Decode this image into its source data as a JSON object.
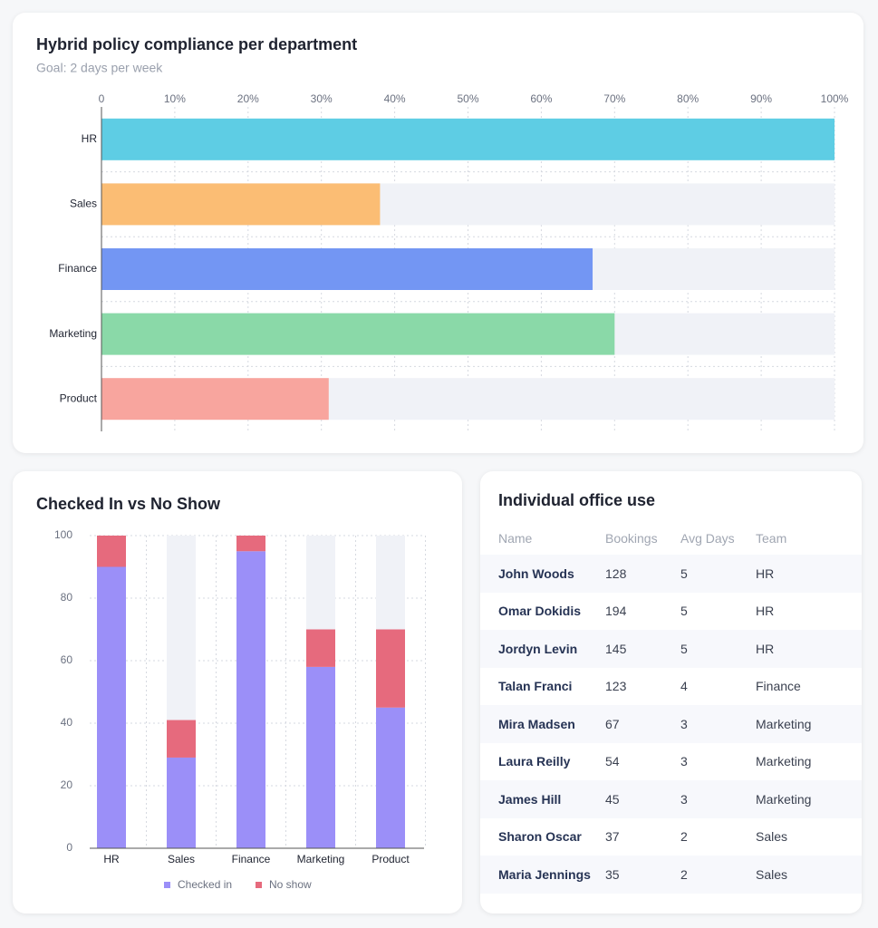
{
  "chart_data": [
    {
      "type": "hbar",
      "title": "Hybrid policy compliance per department",
      "subtitle": "Goal: 2 days per week",
      "categories": [
        "HR",
        "Sales",
        "Finance",
        "Marketing",
        "Product"
      ],
      "values": [
        100,
        38,
        67,
        70,
        31
      ],
      "colors": [
        "#5ecde4",
        "#fbbd74",
        "#7396f3",
        "#8ad9a8",
        "#f8a59e"
      ],
      "xlim": [
        0,
        100
      ],
      "xticks": [
        0,
        {
          "value": 10,
          "label": "10%"
        },
        {
          "value": 20,
          "label": "20%"
        },
        {
          "value": 30,
          "label": "30%"
        },
        {
          "value": 40,
          "label": "40%"
        },
        {
          "value": 50,
          "label": "50%"
        },
        {
          "value": 60,
          "label": "60%"
        },
        {
          "value": 70,
          "label": "70%"
        },
        {
          "value": 80,
          "label": "80%"
        },
        {
          "value": 90,
          "label": "90%"
        },
        {
          "value": 100,
          "label": "100%"
        }
      ],
      "grid": true
    },
    {
      "type": "stacked_bar",
      "title": "Checked In vs No Show",
      "categories": [
        "HR",
        "Sales",
        "Finance",
        "Marketing",
        "Product"
      ],
      "series": [
        {
          "name": "Checked in",
          "color": "#9b8ff8",
          "values": [
            90,
            29,
            95,
            58,
            45
          ]
        },
        {
          "name": "No show",
          "color": "#e66a7d",
          "values": [
            10,
            12,
            5,
            12,
            25
          ]
        }
      ],
      "ylim": [
        0,
        100
      ],
      "yticks": [
        0,
        20,
        40,
        60,
        80,
        100
      ],
      "grid": true,
      "legend": "bottom"
    }
  ],
  "table": {
    "title": "Individual office use",
    "columns": [
      "Name",
      "Bookings",
      "Avg Days",
      "Team"
    ],
    "rows": [
      [
        "John Woods",
        "128",
        "5",
        "HR"
      ],
      [
        "Omar Dokidis",
        "194",
        "5",
        "HR"
      ],
      [
        "Jordyn Levin",
        "145",
        "5",
        "HR"
      ],
      [
        "Talan Franci",
        "123",
        "4",
        "Finance"
      ],
      [
        "Mira Madsen",
        "67",
        "3",
        "Marketing"
      ],
      [
        "Laura Reilly",
        "54",
        "3",
        "Marketing"
      ],
      [
        "James Hill",
        "45",
        "3",
        "Marketing"
      ],
      [
        "Sharon Oscar",
        "37",
        "2",
        "Sales"
      ],
      [
        "Maria Jennings",
        "35",
        "2",
        "Sales"
      ]
    ]
  }
}
